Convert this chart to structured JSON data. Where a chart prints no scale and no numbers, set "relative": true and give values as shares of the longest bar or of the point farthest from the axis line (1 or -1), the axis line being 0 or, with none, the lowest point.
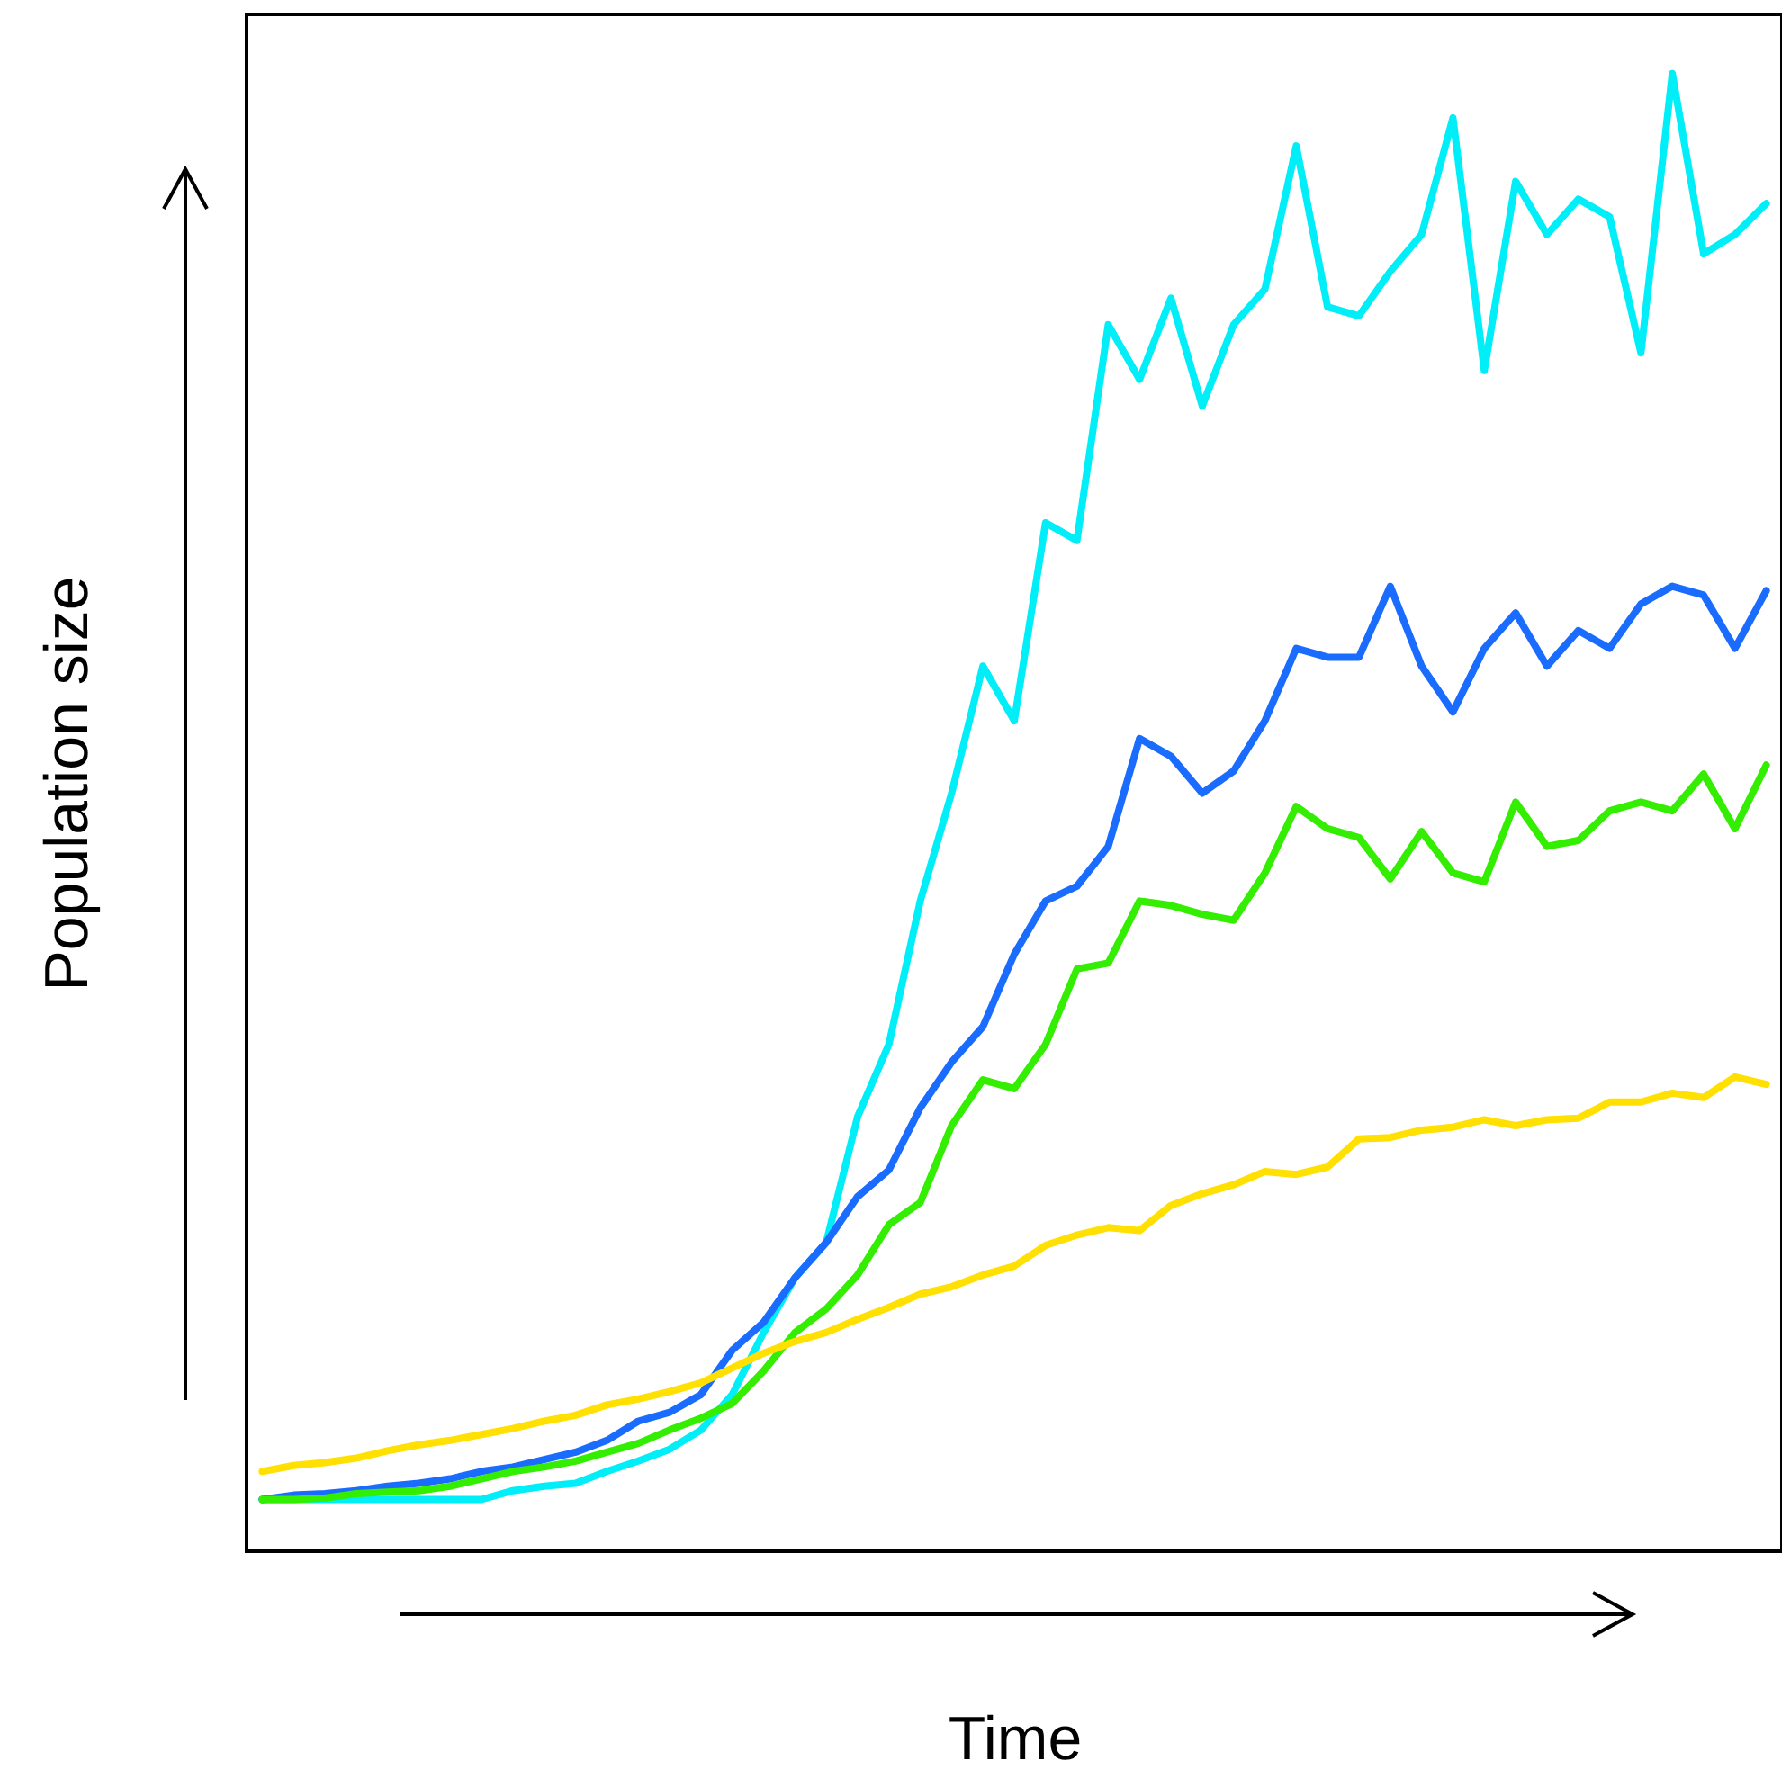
{
  "chart_data": {
    "type": "line",
    "relative": true,
    "xlabel": "Time",
    "ylabel": "Population size",
    "grid": false,
    "tick_labels": false,
    "line_style": "solid",
    "marker": "none",
    "categories": [
      null,
      null,
      null,
      null,
      null,
      null,
      null,
      null,
      null,
      null,
      null,
      null,
      null,
      null,
      null,
      null,
      null,
      null,
      null,
      null,
      null,
      null,
      null,
      null,
      null,
      null,
      null,
      null,
      null,
      null,
      null,
      null,
      null,
      null,
      null,
      null,
      null,
      null,
      null,
      null,
      null,
      null,
      null,
      null,
      null,
      null,
      null,
      null,
      null
    ],
    "series": [
      {
        "color": "#00eef8",
        "values": [
          0.035,
          0.035,
          0.035,
          0.035,
          0.035,
          0.035,
          0.035,
          0.035,
          0.041,
          0.044,
          0.046,
          0.054,
          0.061,
          0.069,
          0.082,
          0.106,
          0.148,
          0.185,
          0.209,
          0.294,
          0.343,
          0.44,
          0.513,
          0.599,
          0.562,
          0.696,
          0.684,
          0.83,
          0.793,
          0.848,
          0.775,
          0.83,
          0.854,
          0.951,
          0.842,
          0.836,
          0.866,
          0.891,
          0.97,
          0.799,
          0.927,
          0.891,
          0.915,
          0.903,
          0.811,
          1,
          0.878,
          0.891,
          0.912
        ]
      },
      {
        "color": "#1a6cff",
        "values": [
          0.035,
          0.038,
          0.039,
          0.041,
          0.044,
          0.046,
          0.049,
          0.054,
          0.057,
          0.062,
          0.067,
          0.075,
          0.088,
          0.094,
          0.106,
          0.136,
          0.155,
          0.185,
          0.209,
          0.24,
          0.258,
          0.3,
          0.331,
          0.355,
          0.404,
          0.44,
          0.45,
          0.477,
          0.55,
          0.538,
          0.513,
          0.528,
          0.562,
          0.611,
          0.605,
          0.605,
          0.653,
          0.599,
          0.568,
          0.611,
          0.635,
          0.599,
          0.623,
          0.611,
          0.641,
          0.653,
          0.647,
          0.611,
          0.65
        ]
      },
      {
        "color": "#33ee00",
        "values": [
          0.035,
          0.035,
          0.036,
          0.039,
          0.04,
          0.041,
          0.044,
          0.049,
          0.054,
          0.057,
          0.061,
          0.067,
          0.073,
          0.082,
          0.09,
          0.1,
          0.122,
          0.148,
          0.164,
          0.187,
          0.221,
          0.236,
          0.288,
          0.319,
          0.313,
          0.343,
          0.394,
          0.398,
          0.44,
          0.437,
          0.431,
          0.427,
          0.459,
          0.504,
          0.489,
          0.483,
          0.455,
          0.487,
          0.459,
          0.453,
          0.507,
          0.477,
          0.481,
          0.501,
          0.507,
          0.501,
          0.526,
          0.489,
          0.532
        ]
      },
      {
        "color": "#ffe000",
        "values": [
          0.054,
          0.058,
          0.06,
          0.063,
          0.068,
          0.072,
          0.075,
          0.079,
          0.083,
          0.088,
          0.092,
          0.099,
          0.103,
          0.108,
          0.114,
          0.124,
          0.134,
          0.142,
          0.148,
          0.157,
          0.165,
          0.174,
          0.179,
          0.187,
          0.193,
          0.207,
          0.214,
          0.219,
          0.217,
          0.234,
          0.242,
          0.248,
          0.257,
          0.255,
          0.26,
          0.279,
          0.28,
          0.285,
          0.287,
          0.292,
          0.288,
          0.292,
          0.293,
          0.304,
          0.304,
          0.31,
          0.307,
          0.321,
          0.316
        ]
      }
    ]
  }
}
